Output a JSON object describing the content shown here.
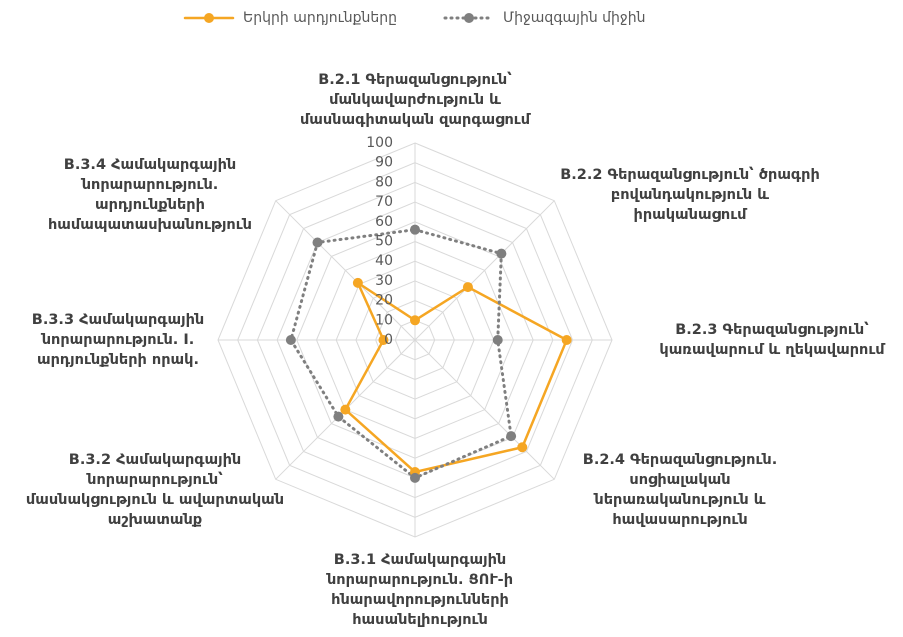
{
  "chart_data": {
    "type": "radar",
    "categories": [
      "B.2.1 Գերազանցություն՝ մանկավարժություն և մասնագիտական զարգացում",
      "B.2.2 Գերազանցություն՝ ծրագրի բովանդակություն և իրականացում",
      "B.2.3 Գերազանցություն՝ կառավարում և ղեկավարում",
      "B.2.4 Գերազանցություն. սոցիալական ներառականություն և հավասարություն",
      "B.3.1 Համակարգային նորարարություն. ՑՈՒ-ի հնարավորությունների հասանելիություն",
      "B.3.2 Համակարգային նորարարություն՝ մասնակցություն և ավարտական աշխատանք",
      "B.3.3 Համակարգային նորարարություն. I. արդյունքների որակ.",
      "B.3.4 Համակարգային նորարարություն. արդյունքների համապատասխանություն"
    ],
    "series": [
      {
        "name": "Երկրի արդյունքները",
        "color": "#f5a623",
        "values": [
          10,
          38,
          77,
          77,
          67,
          50,
          16,
          41
        ]
      },
      {
        "name": "Միջազգային միջին",
        "color": "#7f7f7f",
        "values": [
          56,
          62,
          42,
          69,
          70,
          55,
          63,
          70
        ]
      }
    ],
    "ylim": [
      0,
      100
    ],
    "yticks": [
      0,
      10,
      20,
      30,
      40,
      50,
      60,
      70,
      80,
      90,
      100
    ],
    "grid": true,
    "legend": "top"
  }
}
